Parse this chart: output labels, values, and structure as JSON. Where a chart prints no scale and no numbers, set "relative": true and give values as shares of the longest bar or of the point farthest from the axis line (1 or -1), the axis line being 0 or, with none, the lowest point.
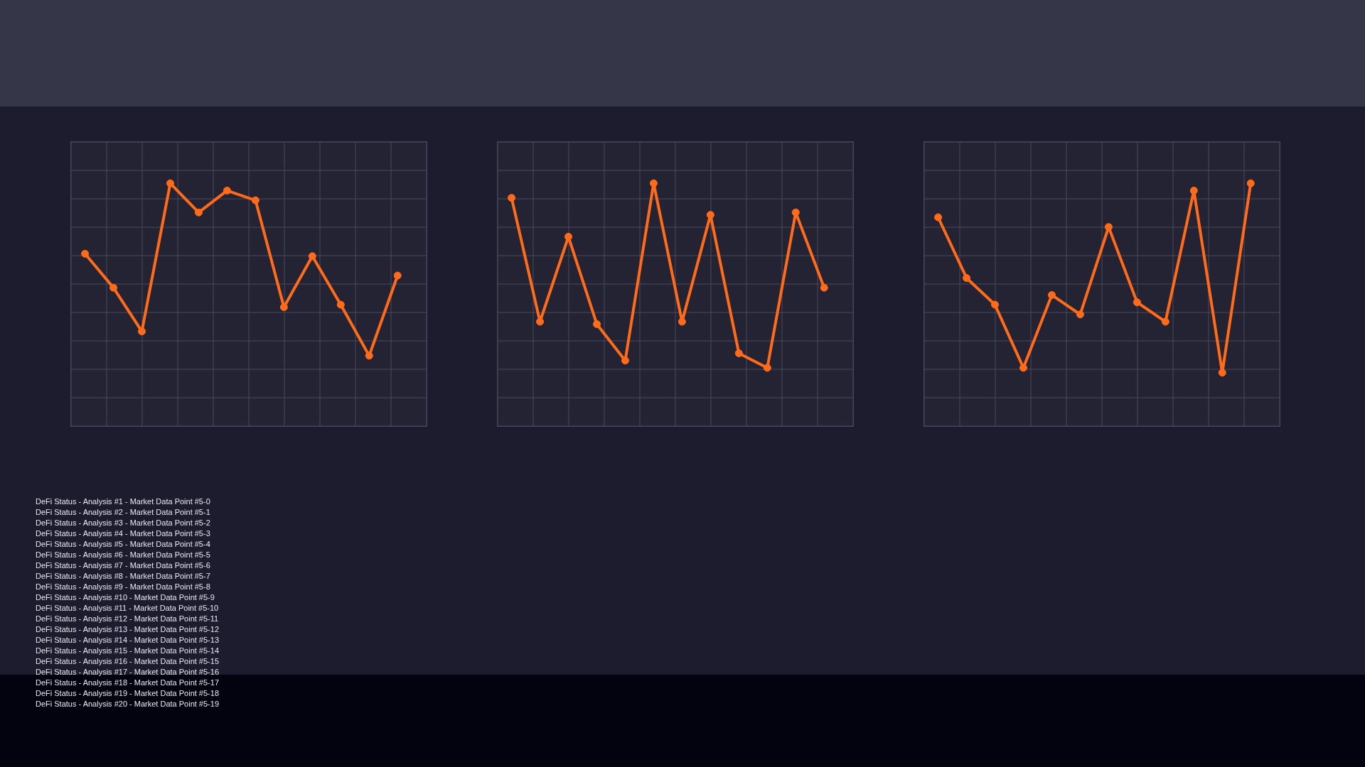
{
  "chart_data": [
    {
      "type": "line",
      "relative": true,
      "grid": true,
      "marker": "circle",
      "line_style": "solid",
      "categories": [
        null,
        null,
        null,
        null,
        null,
        null,
        null,
        null,
        null,
        null,
        null,
        null
      ],
      "series": [
        {
          "color": "#ff6b1a",
          "values": [
            0.71,
            0.57,
            0.39,
            1,
            0.88,
            0.97,
            0.93,
            0.49,
            0.7,
            0.5,
            0.29,
            0.62
          ]
        }
      ]
    },
    {
      "type": "line",
      "relative": true,
      "grid": true,
      "marker": "circle",
      "line_style": "solid",
      "categories": [
        null,
        null,
        null,
        null,
        null,
        null,
        null,
        null,
        null,
        null,
        null,
        null
      ],
      "series": [
        {
          "color": "#ff6b1a",
          "values": [
            0.94,
            0.43,
            0.78,
            0.42,
            0.27,
            1,
            0.43,
            0.87,
            0.3,
            0.24,
            0.88,
            0.57
          ]
        }
      ]
    },
    {
      "type": "line",
      "relative": true,
      "grid": true,
      "marker": "circle",
      "line_style": "solid",
      "categories": [
        null,
        null,
        null,
        null,
        null,
        null,
        null,
        null,
        null,
        null,
        null,
        null
      ],
      "series": [
        {
          "color": "#ff6b1a",
          "values": [
            0.86,
            0.61,
            0.5,
            0.24,
            0.54,
            0.46,
            0.82,
            0.51,
            0.43,
            0.97,
            0.22,
            1
          ]
        }
      ]
    },
    {
      "type": "other",
      "annotations": [
        "DeFi Status - Analysis #1 - Market Data Point #5-0",
        "DeFi Status - Analysis #2 - Market Data Point #5-1",
        "DeFi Status - Analysis #3 - Market Data Point #5-2",
        "DeFi Status - Analysis #4 - Market Data Point #5-3",
        "DeFi Status - Analysis #5 - Market Data Point #5-4",
        "DeFi Status - Analysis #6 - Market Data Point #5-5",
        "DeFi Status - Analysis #7 - Market Data Point #5-6",
        "DeFi Status - Analysis #8 - Market Data Point #5-7",
        "DeFi Status - Analysis #9 - Market Data Point #5-8",
        "DeFi Status - Analysis #10 - Market Data Point #5-9",
        "DeFi Status - Analysis #11 - Market Data Point #5-10",
        "DeFi Status - Analysis #12 - Market Data Point #5-11",
        "DeFi Status - Analysis #13 - Market Data Point #5-12",
        "DeFi Status - Analysis #14 - Market Data Point #5-13",
        "DeFi Status - Analysis #15 - Market Data Point #5-14",
        "DeFi Status - Analysis #16 - Market Data Point #5-15",
        "DeFi Status - Analysis #17 - Market Data Point #5-16",
        "DeFi Status - Analysis #18 - Market Data Point #5-17",
        "DeFi Status - Analysis #19 - Market Data Point #5-18",
        "DeFi Status - Analysis #20 - Market Data Point #5-19"
      ]
    }
  ]
}
